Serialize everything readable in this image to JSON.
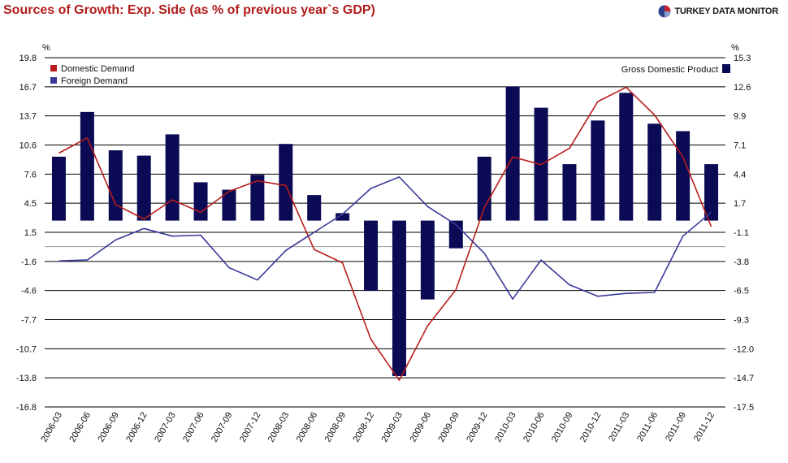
{
  "header": {
    "title": "Sources of Growth: Exp. Side (as % of previous year`s GDP)",
    "brand": "TURKEY DATA MONITOR"
  },
  "chart_data": {
    "type": "bar",
    "title": "Sources of Growth: Exp. Side (as % of previous year`s GDP)",
    "categories": [
      "2006-03",
      "2006-06",
      "2006-09",
      "2006-12",
      "2007-03",
      "2007-06",
      "2007-09",
      "2007-12",
      "2008-03",
      "2008-06",
      "2008-09",
      "2008-12",
      "2009-03",
      "2009-06",
      "2009-09",
      "2009-12",
      "2010-03",
      "2010-06",
      "2010-09",
      "2010-12",
      "2011-03",
      "2011-06",
      "2011-09",
      "2011-12"
    ],
    "left_axis": {
      "label": "%",
      "ylim": [
        -16.8,
        19.8
      ],
      "ticks": [
        "19.8",
        "16.7",
        "13.7",
        "10.6",
        "7.6",
        "4.5",
        "1.5",
        "-1.6",
        "-4.6",
        "-7.7",
        "-10.7",
        "-13.8",
        "-16.8"
      ]
    },
    "right_axis": {
      "label": "%",
      "ylim": [
        -17.5,
        15.3
      ],
      "ticks": [
        "15.3",
        "12.6",
        "9.9",
        "7.1",
        "4.4",
        "1.7",
        "-1.1",
        "-3.8",
        "-6.5",
        "-9.3",
        "-12.0",
        "-14.7",
        "-17.5"
      ]
    },
    "legend_left": [
      "Domestic Demand",
      "Foreign Demand"
    ],
    "legend_right": "Gross Domestic Product",
    "colors": {
      "domestic": "#b81c1c",
      "foreign": "#3a3a9a",
      "gdp": "#0a0a55",
      "grid": "#000000",
      "zero": "#999999"
    },
    "series": [
      {
        "name": "Domestic Demand",
        "axis": "left",
        "kind": "line",
        "values": [
          9.8,
          11.4,
          4.4,
          2.9,
          4.9,
          3.6,
          5.8,
          6.9,
          6.4,
          -0.3,
          -1.7,
          -9.7,
          -14.0,
          -8.3,
          -4.5,
          4.1,
          9.4,
          8.6,
          10.3,
          15.2,
          16.7,
          13.8,
          9.4,
          2.1
        ]
      },
      {
        "name": "Foreign Demand",
        "axis": "left",
        "kind": "line",
        "values": [
          -1.5,
          -1.4,
          0.7,
          1.9,
          1.1,
          1.2,
          -2.2,
          -3.5,
          -0.4,
          1.5,
          3.4,
          6.1,
          7.3,
          4.2,
          2.3,
          -0.7,
          -5.5,
          -1.4,
          -4.0,
          -5.2,
          -4.9,
          -4.8,
          1.1,
          3.6
        ]
      },
      {
        "name": "Gross Domestic Product",
        "axis": "right",
        "kind": "bar",
        "values": [
          6.0,
          10.2,
          6.6,
          6.1,
          8.1,
          3.6,
          2.9,
          4.3,
          7.2,
          2.4,
          0.7,
          -6.6,
          -14.6,
          -7.4,
          -2.6,
          6.0,
          12.6,
          10.6,
          5.3,
          9.4,
          12.0,
          9.1,
          8.4,
          5.3
        ]
      }
    ]
  }
}
